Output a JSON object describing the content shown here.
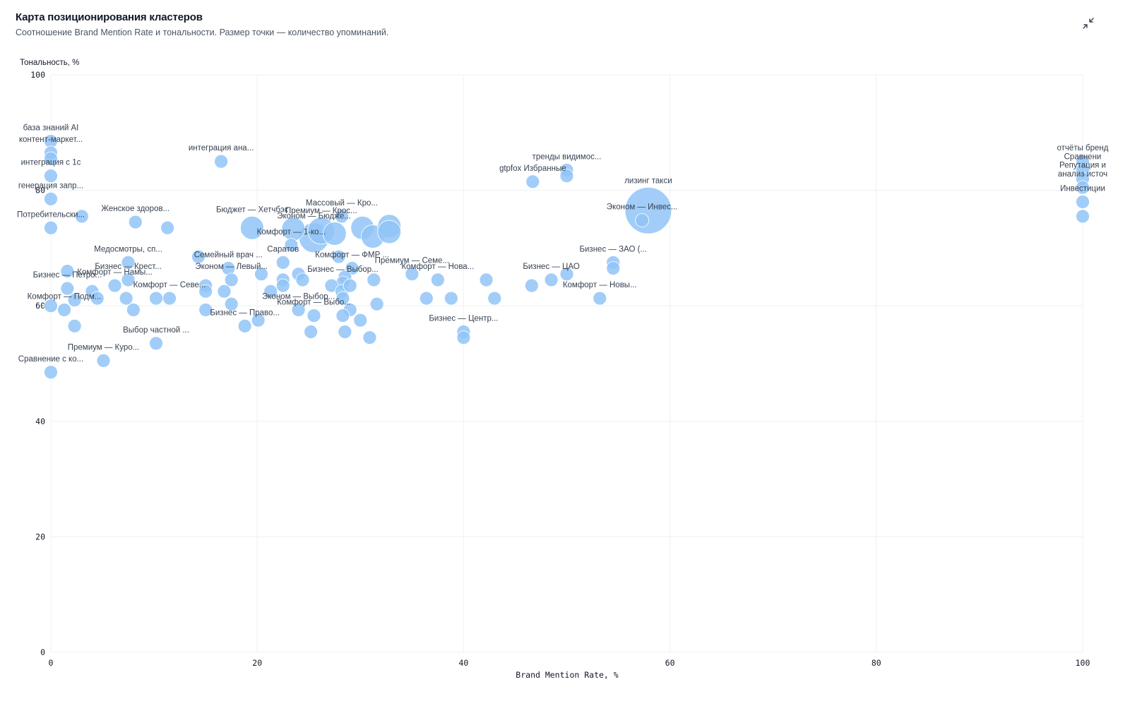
{
  "header": {
    "title": "Карта позиционирования кластеров",
    "subtitle": "Соотношение Brand Mention Rate и тональности. Размер точки — количество упоминаний."
  },
  "controls": {
    "collapse_icon": "collapse-icon"
  },
  "colors": {
    "bubble": "#90c4f7",
    "grid": "#eef0f3",
    "text": "#111827"
  },
  "chart_data": {
    "type": "scatter",
    "title": "",
    "xlabel": "Brand Mention Rate, %",
    "ylabel": "Тональность, %",
    "xlim": [
      0,
      100
    ],
    "ylim": [
      0,
      100
    ],
    "xticks": [
      0,
      20,
      40,
      60,
      80,
      100
    ],
    "yticks": [
      0,
      20,
      40,
      60,
      80,
      100
    ],
    "grid": true,
    "size_encoding": "количество упоминаний",
    "points": [
      {
        "label": "база знаний AI",
        "x": 0,
        "y": 88.5,
        "size": 1
      },
      {
        "label": "контент-маркет...",
        "x": 0,
        "y": 86.5,
        "size": 1
      },
      {
        "label": "",
        "x": 0,
        "y": 85.5,
        "size": 1
      },
      {
        "label": "интеграция с 1с",
        "x": 0,
        "y": 82.5,
        "size": 1
      },
      {
        "label": "генерация запр...",
        "x": 0,
        "y": 78.5,
        "size": 1
      },
      {
        "label": "Потребительски...",
        "x": 0,
        "y": 73.5,
        "size": 1
      },
      {
        "label": "",
        "x": 3,
        "y": 75.5,
        "size": 1
      },
      {
        "label": "интеграция ана...",
        "x": 16.5,
        "y": 85,
        "size": 1
      },
      {
        "label": "Женское здоров...",
        "x": 8.2,
        "y": 74.5,
        "size": 1
      },
      {
        "label": "",
        "x": 11.3,
        "y": 73.5,
        "size": 1
      },
      {
        "label": "Медосмотры, сп...",
        "x": 7.5,
        "y": 67.5,
        "size": 1
      },
      {
        "label": "Бизнес — Крест...",
        "x": 7.5,
        "y": 64.5,
        "size": 1
      },
      {
        "label": "Комфорт — Намы...",
        "x": 6.2,
        "y": 63.5,
        "size": 1
      },
      {
        "label": "",
        "x": 1.6,
        "y": 66,
        "size": 1
      },
      {
        "label": "Бизнес — Петро...",
        "x": 1.6,
        "y": 63,
        "size": 1
      },
      {
        "label": "",
        "x": 4,
        "y": 62.5,
        "size": 1
      },
      {
        "label": "",
        "x": 4.5,
        "y": 61.3,
        "size": 1
      },
      {
        "label": "",
        "x": 2.3,
        "y": 61,
        "size": 1
      },
      {
        "label": "",
        "x": 0,
        "y": 60,
        "size": 1
      },
      {
        "label": "Комфорт — Подм...",
        "x": 1.3,
        "y": 59.3,
        "size": 1
      },
      {
        "label": "",
        "x": 2.3,
        "y": 56.5,
        "size": 1
      },
      {
        "label": "",
        "x": 7.3,
        "y": 61.3,
        "size": 1
      },
      {
        "label": "",
        "x": 8,
        "y": 59.3,
        "size": 1
      },
      {
        "label": "",
        "x": 10.2,
        "y": 61.3,
        "size": 1
      },
      {
        "label": "Комфорт — Севе...",
        "x": 11.5,
        "y": 61.3,
        "size": 1
      },
      {
        "label": "Выбор частной ...",
        "x": 10.2,
        "y": 53.5,
        "size": 1
      },
      {
        "label": "Премиум — Куро...",
        "x": 5.1,
        "y": 50.5,
        "size": 1
      },
      {
        "label": "Сравнение с ко...",
        "x": 0,
        "y": 48.5,
        "size": 1
      },
      {
        "label": "",
        "x": 14.3,
        "y": 68.5,
        "size": 1
      },
      {
        "label": "Семейный врач ...",
        "x": 17.2,
        "y": 66.5,
        "size": 1
      },
      {
        "label": "Эконом — Левый...",
        "x": 17.5,
        "y": 64.5,
        "size": 1
      },
      {
        "label": "",
        "x": 15,
        "y": 63.5,
        "size": 1
      },
      {
        "label": "",
        "x": 15,
        "y": 62.5,
        "size": 1
      },
      {
        "label": "",
        "x": 16.8,
        "y": 62.5,
        "size": 1
      },
      {
        "label": "",
        "x": 17.5,
        "y": 60.3,
        "size": 1
      },
      {
        "label": "",
        "x": 15,
        "y": 59.3,
        "size": 1
      },
      {
        "label": "Бизнес — Право...",
        "x": 18.8,
        "y": 56.5,
        "size": 1
      },
      {
        "label": "",
        "x": 20.1,
        "y": 57.5,
        "size": 1
      },
      {
        "label": "Бюджет — Хетчбэк",
        "x": 19.5,
        "y": 73.5,
        "size": 3
      },
      {
        "label": "",
        "x": 20.4,
        "y": 65.5,
        "size": 1
      },
      {
        "label": "",
        "x": 21.3,
        "y": 62.5,
        "size": 1
      },
      {
        "label": "Массовый — Кро...",
        "x": 28.2,
        "y": 75.5,
        "size": 1
      },
      {
        "label": "Премиум — Крос...",
        "x": 26.2,
        "y": 73,
        "size": 4
      },
      {
        "label": "Эконом — Бюдже...",
        "x": 25.5,
        "y": 71.8,
        "size": 5
      },
      {
        "label": "",
        "x": 23.5,
        "y": 73.3,
        "size": 3
      },
      {
        "label": "",
        "x": 27.5,
        "y": 72.5,
        "size": 3
      },
      {
        "label": "",
        "x": 30.2,
        "y": 73.5,
        "size": 3
      },
      {
        "label": "",
        "x": 31.2,
        "y": 72,
        "size": 3
      },
      {
        "label": "",
        "x": 32.8,
        "y": 73.8,
        "size": 3
      },
      {
        "label": "",
        "x": 32.8,
        "y": 72.8,
        "size": 3
      },
      {
        "label": "Комфорт — 1-ко...",
        "x": 23.3,
        "y": 70.5,
        "size": 1
      },
      {
        "label": "",
        "x": 27.9,
        "y": 68.5,
        "size": 1
      },
      {
        "label": "Саратов",
        "x": 22.5,
        "y": 67.5,
        "size": 1
      },
      {
        "label": "",
        "x": 24,
        "y": 65.5,
        "size": 1
      },
      {
        "label": "",
        "x": 22.5,
        "y": 64.5,
        "size": 1
      },
      {
        "label": "",
        "x": 22.5,
        "y": 63.5,
        "size": 1
      },
      {
        "label": "Комфорт — ФМР ...",
        "x": 29.2,
        "y": 66.5,
        "size": 1
      },
      {
        "label": "",
        "x": 28.5,
        "y": 65,
        "size": 1
      },
      {
        "label": "Бизнес — Выбор...",
        "x": 28.3,
        "y": 64,
        "size": 1
      },
      {
        "label": "",
        "x": 27.2,
        "y": 63.5,
        "size": 1
      },
      {
        "label": "",
        "x": 28.2,
        "y": 62.5,
        "size": 1
      },
      {
        "label": "",
        "x": 29,
        "y": 63.5,
        "size": 1
      },
      {
        "label": "",
        "x": 31.3,
        "y": 64.5,
        "size": 1
      },
      {
        "label": "",
        "x": 24.4,
        "y": 64.5,
        "size": 1
      },
      {
        "label": "Эконом — Выбор...",
        "x": 24,
        "y": 59.3,
        "size": 1
      },
      {
        "label": "",
        "x": 28.3,
        "y": 61.3,
        "size": 1
      },
      {
        "label": "",
        "x": 29,
        "y": 59.3,
        "size": 1
      },
      {
        "label": "",
        "x": 31.6,
        "y": 60.3,
        "size": 1
      },
      {
        "label": "Комфорт — Выбо...",
        "x": 25.5,
        "y": 58.3,
        "size": 1
      },
      {
        "label": "",
        "x": 28.3,
        "y": 58.3,
        "size": 1
      },
      {
        "label": "",
        "x": 30,
        "y": 57.5,
        "size": 1
      },
      {
        "label": "",
        "x": 25.2,
        "y": 55.5,
        "size": 1
      },
      {
        "label": "",
        "x": 28.5,
        "y": 55.5,
        "size": 1
      },
      {
        "label": "",
        "x": 30.9,
        "y": 54.5,
        "size": 1
      },
      {
        "label": "Премиум — Семе...",
        "x": 35,
        "y": 65.5,
        "size": 1
      },
      {
        "label": "Комфорт — Нова...",
        "x": 37.5,
        "y": 64.5,
        "size": 1
      },
      {
        "label": "",
        "x": 36.4,
        "y": 61.3,
        "size": 1
      },
      {
        "label": "",
        "x": 38.8,
        "y": 61.3,
        "size": 1
      },
      {
        "label": "Бизнес — Центр...",
        "x": 40,
        "y": 55.5,
        "size": 1
      },
      {
        "label": "",
        "x": 40,
        "y": 54.5,
        "size": 1
      },
      {
        "label": "",
        "x": 42.2,
        "y": 64.5,
        "size": 1
      },
      {
        "label": "",
        "x": 43,
        "y": 61.3,
        "size": 1
      },
      {
        "label": "Бизнес — ЦАО",
        "x": 48.5,
        "y": 64.5,
        "size": 1
      },
      {
        "label": "",
        "x": 46.6,
        "y": 63.5,
        "size": 1
      },
      {
        "label": "",
        "x": 50,
        "y": 65.5,
        "size": 1
      },
      {
        "label": "Комфорт — Новы...",
        "x": 53.2,
        "y": 61.3,
        "size": 1
      },
      {
        "label": "Бизнес — ЗАО (...",
        "x": 54.5,
        "y": 67.5,
        "size": 1
      },
      {
        "label": "",
        "x": 54.5,
        "y": 66.5,
        "size": 1
      },
      {
        "label": "тренды видимос...",
        "x": 50,
        "y": 83.5,
        "size": 1
      },
      {
        "label": "gtpfox Избранные",
        "x": 46.7,
        "y": 81.5,
        "size": 1
      },
      {
        "label": "",
        "x": 50,
        "y": 82.5,
        "size": 1
      },
      {
        "label": "лизинг такси",
        "x": 57.9,
        "y": 76.5,
        "size": 12
      },
      {
        "label": "Эконом — Инвес...",
        "x": 57.3,
        "y": 74.8,
        "size": 1
      },
      {
        "label": "отчёты бренд",
        "x": 100,
        "y": 85,
        "size": 1
      },
      {
        "label": "Сравнени",
        "x": 100,
        "y": 83.5,
        "size": 1
      },
      {
        "label": "Репутация и",
        "x": 100,
        "y": 82,
        "size": 1
      },
      {
        "label": "анализ источ",
        "x": 100,
        "y": 80.5,
        "size": 1
      },
      {
        "label": "Инвестиции",
        "x": 100,
        "y": 78,
        "size": 1
      },
      {
        "label": "",
        "x": 100,
        "y": 75.5,
        "size": 1
      }
    ]
  }
}
